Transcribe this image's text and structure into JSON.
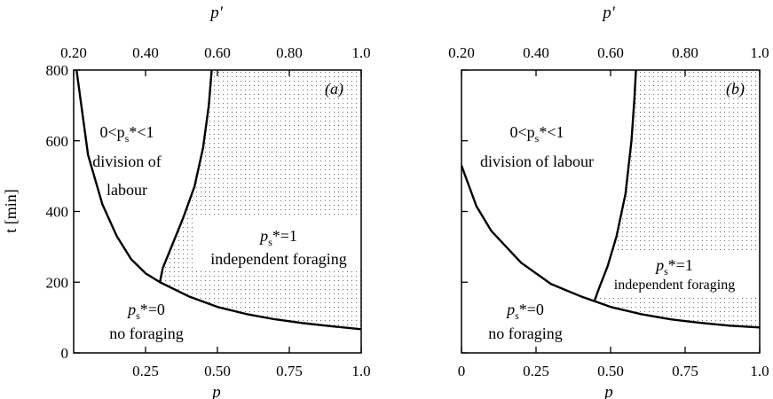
{
  "chart_data": [
    {
      "type": "line",
      "panel_label": "(a)",
      "xlabel": "p",
      "x2label": "p'",
      "ylabel": "t [min]",
      "xlim": [
        0,
        1.0
      ],
      "ylim": [
        0,
        800
      ],
      "xticks": [
        "0.25",
        "0.50",
        "0.75",
        "1.0"
      ],
      "yticks": [
        "0",
        "200",
        "400",
        "600",
        "800"
      ],
      "x2ticks": [
        "0.20",
        "0.40",
        "0.60",
        "0.80",
        "1.0"
      ],
      "series": [
        {
          "x": [
            0.01,
            0.05,
            0.1,
            0.15,
            0.2,
            0.25,
            0.3,
            0.4,
            0.5,
            0.6,
            0.7,
            0.8,
            0.9,
            1.0
          ],
          "y": [
            800,
            560,
            420,
            330,
            265,
            225,
            200,
            160,
            130,
            110,
            95,
            84,
            75,
            67
          ]
        },
        {
          "x": [
            0.3,
            0.31,
            0.34,
            0.38,
            0.42,
            0.45,
            0.47,
            0.48
          ],
          "y": [
            200,
            240,
            300,
            380,
            470,
            580,
            700,
            800
          ]
        }
      ],
      "shaded_region": "independent foraging",
      "regions": {
        "division": [
          "0<p",
          "s",
          "*<1",
          "division of",
          "labour"
        ],
        "independent": [
          "p",
          "s",
          "*=1",
          "independent foraging"
        ],
        "none": [
          "p",
          "s",
          "*=0",
          "no foraging"
        ]
      }
    },
    {
      "type": "line",
      "panel_label": "(b)",
      "xlabel": "p",
      "x2label": "p'",
      "ylabel": "",
      "xlim": [
        0,
        1.0
      ],
      "ylim": [
        0,
        800
      ],
      "xticks": [
        "0",
        "0.25",
        "0.50",
        "0.75",
        "1.0"
      ],
      "yticks": [],
      "x2ticks": [
        "0.20",
        "0.40",
        "0.60",
        "0.80",
        "1.0"
      ],
      "series": [
        {
          "x": [
            0.0,
            0.05,
            0.1,
            0.2,
            0.3,
            0.4,
            0.45,
            0.5,
            0.6,
            0.7,
            0.8,
            0.9,
            1.0
          ],
          "y": [
            530,
            415,
            345,
            255,
            195,
            160,
            145,
            130,
            110,
            95,
            85,
            77,
            72
          ]
        },
        {
          "x": [
            0.445,
            0.46,
            0.49,
            0.52,
            0.55,
            0.57,
            0.58,
            0.585
          ],
          "y": [
            145,
            180,
            245,
            330,
            450,
            600,
            720,
            800
          ]
        }
      ],
      "shaded_region": "independent foraging",
      "regions": {
        "division": [
          "0<p",
          "s",
          "*<1",
          "division of labour"
        ],
        "independent": [
          "p",
          "s",
          "*=1",
          "independent foraging"
        ],
        "none": [
          "p",
          "s",
          "*=0",
          "no foraging"
        ]
      }
    }
  ]
}
